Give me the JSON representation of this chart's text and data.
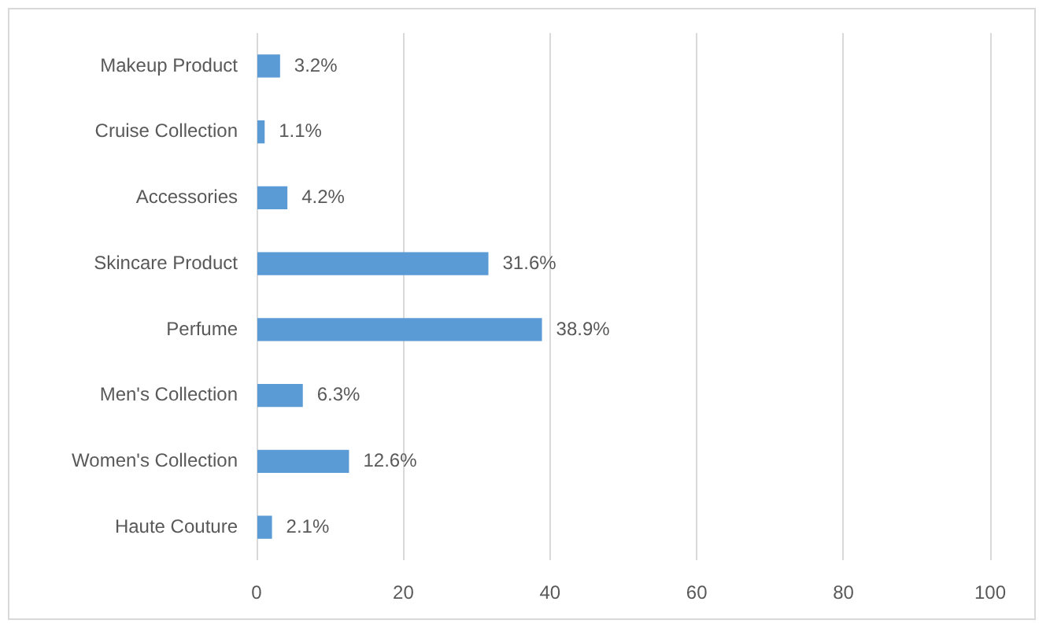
{
  "chart_data": {
    "type": "bar",
    "orientation": "horizontal",
    "categories": [
      "Makeup Product",
      "Cruise Collection",
      "Accessories",
      "Skincare Product",
      "Perfume",
      "Men's Collection",
      "Women's Collection",
      "Haute Couture"
    ],
    "values": [
      3.2,
      1.1,
      4.2,
      31.6,
      38.9,
      6.3,
      12.6,
      2.1
    ],
    "value_labels": [
      "3.2%",
      "1.1%",
      "4.2%",
      "31.6%",
      "38.9%",
      "6.3%",
      "12.6%",
      "2.1%"
    ],
    "color": "#5b9bd5",
    "xlim": [
      0,
      100
    ],
    "xticks": [
      0,
      20,
      40,
      60,
      80,
      100
    ],
    "grid": "x"
  }
}
